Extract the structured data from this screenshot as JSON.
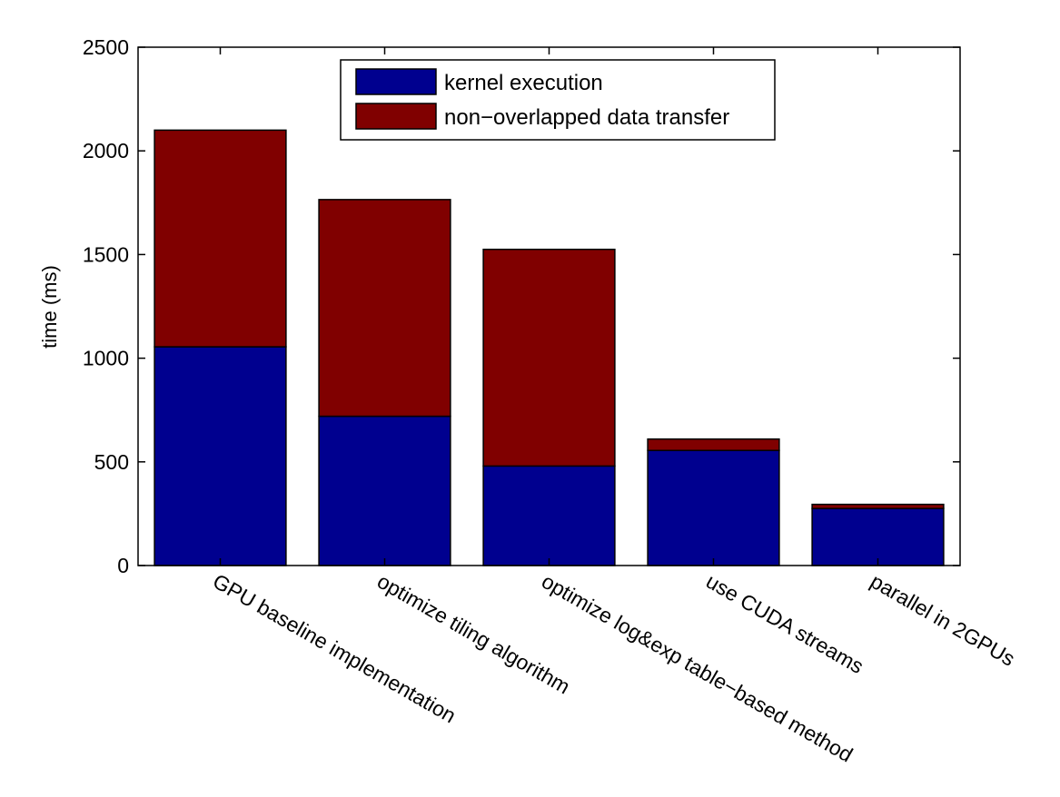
{
  "chart_data": {
    "type": "bar",
    "stacked": true,
    "title": "",
    "xlabel": "",
    "ylabel": "time (ms)",
    "ylim": [
      0,
      2500
    ],
    "yticks": [
      0,
      500,
      1000,
      1500,
      2000,
      2500
    ],
    "grid": false,
    "legend_position": "top-center",
    "categories": [
      "GPU baseline implementation",
      "optimize tiling algorithm",
      "optimize log&exp table−based method",
      "use CUDA streams",
      "parallel in 2GPUs"
    ],
    "series": [
      {
        "name": "kernel execution",
        "color": "#00008F",
        "values": [
          1055,
          720,
          480,
          555,
          275
        ]
      },
      {
        "name": "non−overlapped data transfer",
        "color": "#800000",
        "values": [
          1045,
          1045,
          1045,
          55,
          20
        ]
      }
    ]
  }
}
